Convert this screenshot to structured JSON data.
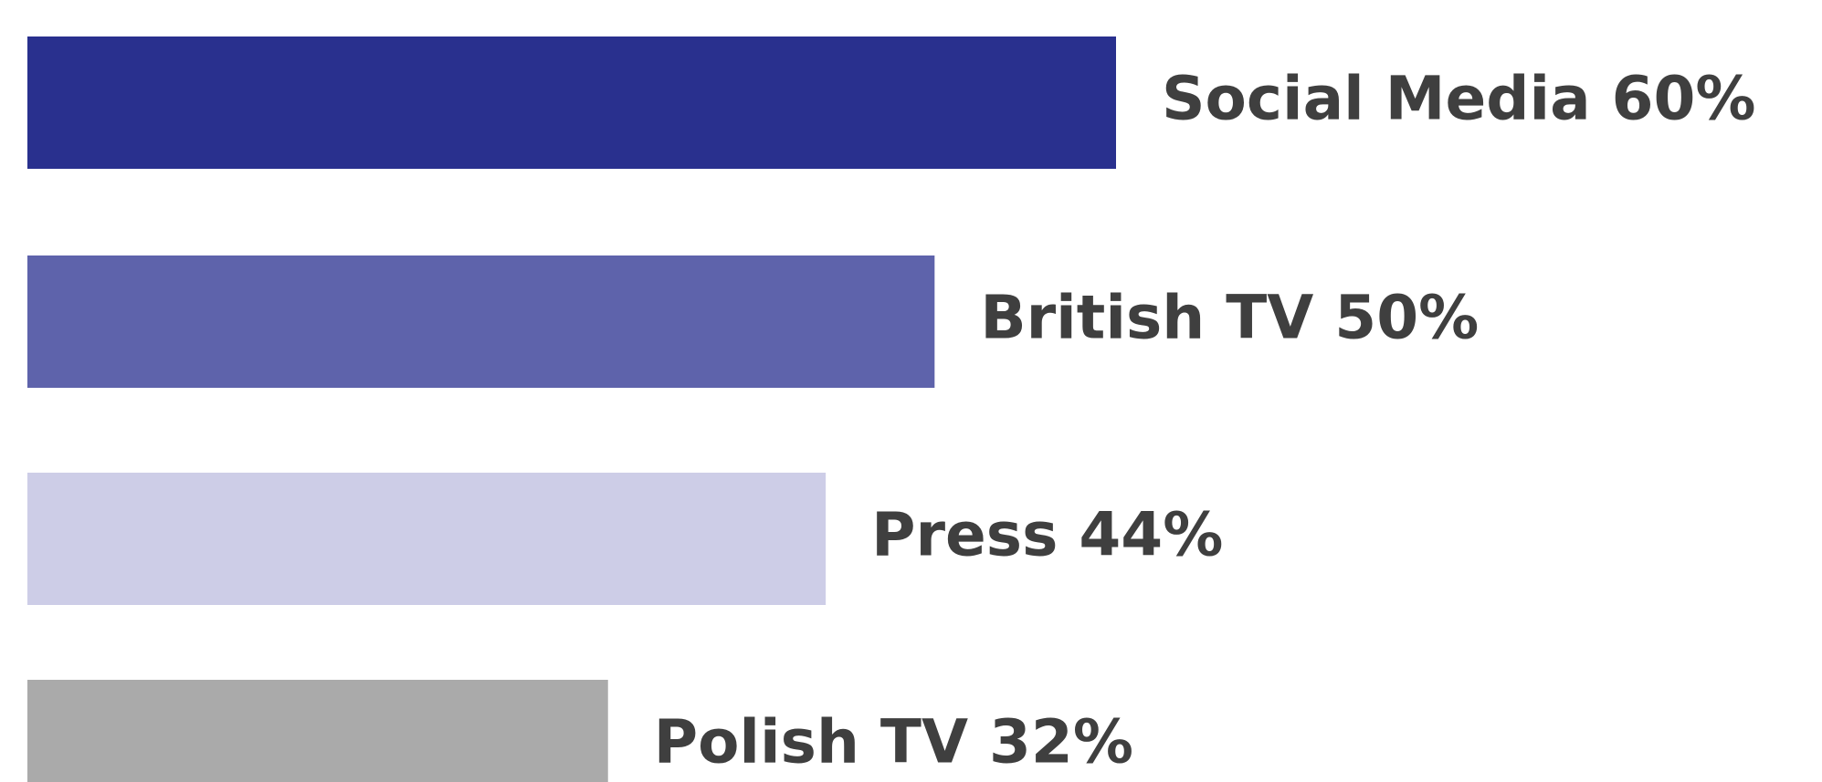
{
  "chart_data": {
    "type": "bar",
    "orientation": "horizontal",
    "categories": [
      "Social Media",
      "British TV",
      "Press",
      "Polish TV"
    ],
    "values": [
      60,
      50,
      44,
      32
    ],
    "labels": [
      "Social Media 60%",
      "British TV 50%",
      "Press 44%",
      "Polish TV 32%"
    ],
    "unit": "%",
    "colors": [
      "#29308e",
      "#5e63ab",
      "#cdcde7",
      "#aaaaaa"
    ],
    "xlim": [
      0,
      60
    ],
    "grid": false,
    "axes_visible": false
  }
}
